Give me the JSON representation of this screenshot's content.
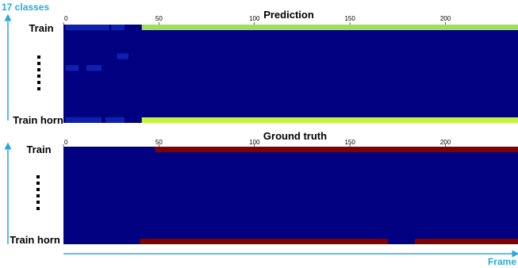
{
  "chart_data": {
    "type": "heatmap",
    "y_axis_label": "17 classes",
    "x_axis_label": "Frame",
    "row_labels": [
      "Train",
      "Train horn"
    ],
    "n_classes": 17,
    "x_range": [
      0,
      238
    ],
    "x_ticks": [
      0,
      50,
      100,
      150,
      200
    ],
    "panels": [
      {
        "title": "Prediction",
        "background_color": "#000080",
        "top_row_active": [
          [
            41,
            238
          ]
        ],
        "bottom_row_active": [
          [
            41,
            238
          ]
        ],
        "top_row_color": "#9de05a",
        "bottom_row_color": "#c5f53c",
        "faint_activations": [
          {
            "row": 0,
            "frames": [
              1,
              24
            ]
          },
          {
            "row": 0,
            "frames": [
              25,
              32
            ]
          },
          {
            "row": 5,
            "frames": [
              28,
              34
            ]
          },
          {
            "row": 7,
            "frames": [
              1,
              8
            ]
          },
          {
            "row": 7,
            "frames": [
              12,
              20
            ]
          },
          {
            "row": 16,
            "frames": [
              1,
              20
            ]
          },
          {
            "row": 16,
            "frames": [
              22,
              32
            ]
          }
        ]
      },
      {
        "title": "Ground truth",
        "background_color": "#000080",
        "top_row_active": [
          [
            48,
            238
          ]
        ],
        "bottom_row_active": [
          [
            40,
            170
          ],
          [
            184,
            238
          ]
        ],
        "top_row_color": "#800000",
        "bottom_row_color": "#800000"
      }
    ]
  }
}
